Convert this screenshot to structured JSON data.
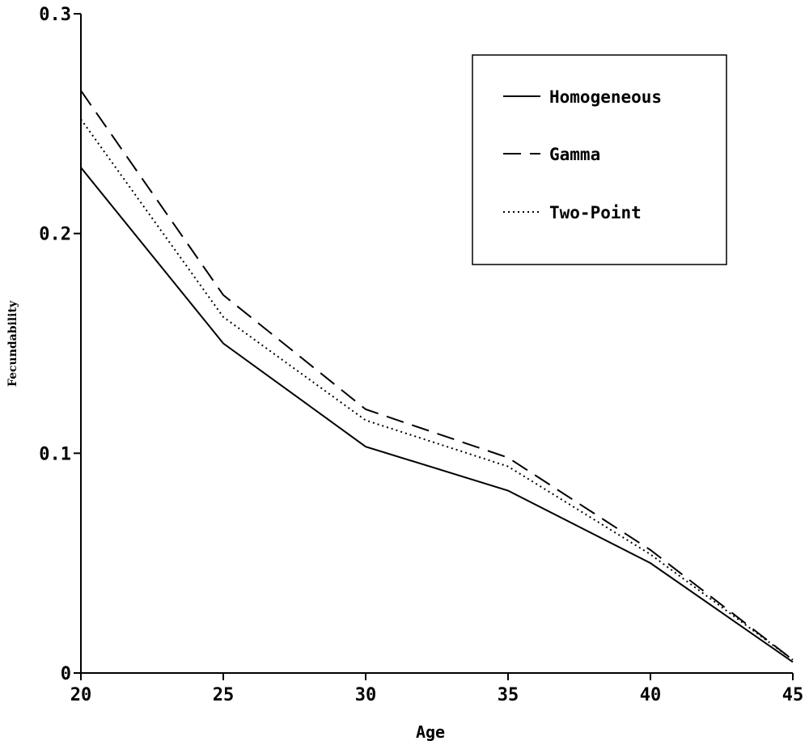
{
  "chart_data": {
    "type": "line",
    "xlabel": "Age",
    "ylabel": "Fecundability",
    "xlim": [
      20,
      45
    ],
    "ylim": [
      0,
      0.3
    ],
    "xticks": [
      "20",
      "25",
      "30",
      "35",
      "40",
      "45"
    ],
    "yticks": [
      "0",
      "0.1",
      "0.2",
      "0.3"
    ],
    "x": [
      20,
      25,
      30,
      35,
      40,
      45
    ],
    "series": [
      {
        "name": "Homogeneous",
        "style": "solid",
        "values": [
          0.23,
          0.15,
          0.103,
          0.083,
          0.05,
          0.005
        ]
      },
      {
        "name": "Gamma",
        "style": "dashed",
        "values": [
          0.265,
          0.172,
          0.12,
          0.098,
          0.056,
          0.006
        ]
      },
      {
        "name": "Two-Point",
        "style": "dotted",
        "values": [
          0.252,
          0.162,
          0.115,
          0.094,
          0.054,
          0.006
        ]
      }
    ],
    "legend_position": "top-right",
    "grid": false
  },
  "colors": {
    "line": "#000000",
    "background": "#ffffff"
  }
}
